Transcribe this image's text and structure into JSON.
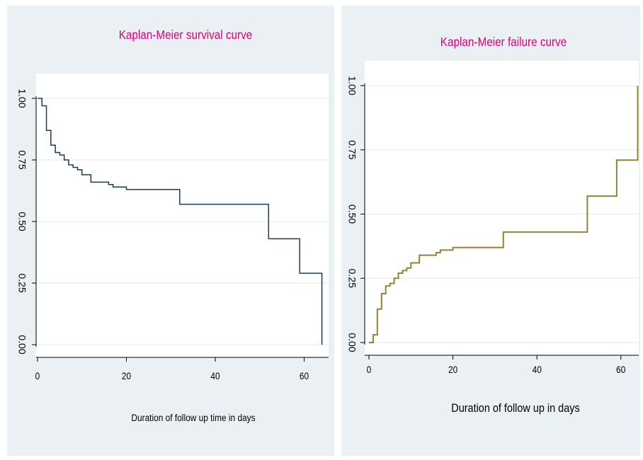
{
  "chart_data": [
    {
      "type": "line",
      "title": "Kaplan-Meier survival curve",
      "xlabel": "Duration of follow up time in days",
      "ylabel": "",
      "xlim": [
        0,
        65
      ],
      "ylim": [
        0,
        1
      ],
      "xticks": [
        0,
        20,
        40,
        60
      ],
      "yticks": [
        0.0,
        0.25,
        0.5,
        0.75,
        1.0
      ],
      "ytick_labels": [
        "0.00",
        "0.25",
        "0.50",
        "0.75",
        "1.00"
      ],
      "grid": true,
      "line_style": "step",
      "colors": {
        "title": "#e0007a",
        "line": "#1a3b5c",
        "xlabel": "#1e1ed0",
        "background": "#eaf0f3"
      },
      "series": [
        {
          "x": [
            0,
            1,
            2,
            3,
            4,
            5,
            6,
            7,
            8,
            9,
            10,
            12,
            16,
            17,
            20,
            32,
            52,
            59,
            64
          ],
          "values": [
            1.0,
            0.97,
            0.87,
            0.81,
            0.78,
            0.77,
            0.75,
            0.73,
            0.72,
            0.71,
            0.69,
            0.66,
            0.65,
            0.64,
            0.63,
            0.57,
            0.43,
            0.29,
            0.0
          ]
        }
      ]
    },
    {
      "type": "line",
      "title": "Kaplan-Meier failure curve",
      "xlabel": "Duration of follow up in days",
      "ylabel": "",
      "xlim": [
        0,
        65
      ],
      "ylim": [
        0,
        1
      ],
      "xticks": [
        0,
        20,
        40,
        60
      ],
      "yticks": [
        0.0,
        0.25,
        0.5,
        0.75,
        1.0
      ],
      "ytick_labels": [
        "0.00",
        "0.25",
        "0.50",
        "0.75",
        "1.00"
      ],
      "grid": true,
      "line_style": "step",
      "colors": {
        "title": "#e0007a",
        "line": "#948335",
        "xlabel": "#000000",
        "background": "#eaf0f3"
      },
      "series": [
        {
          "x": [
            0,
            1,
            2,
            3,
            4,
            5,
            6,
            7,
            8,
            9,
            10,
            12,
            16,
            17,
            20,
            32,
            52,
            59,
            64
          ],
          "values": [
            0.0,
            0.03,
            0.13,
            0.19,
            0.22,
            0.23,
            0.25,
            0.27,
            0.28,
            0.29,
            0.31,
            0.34,
            0.35,
            0.36,
            0.37,
            0.43,
            0.57,
            0.71,
            1.0
          ]
        }
      ]
    }
  ]
}
